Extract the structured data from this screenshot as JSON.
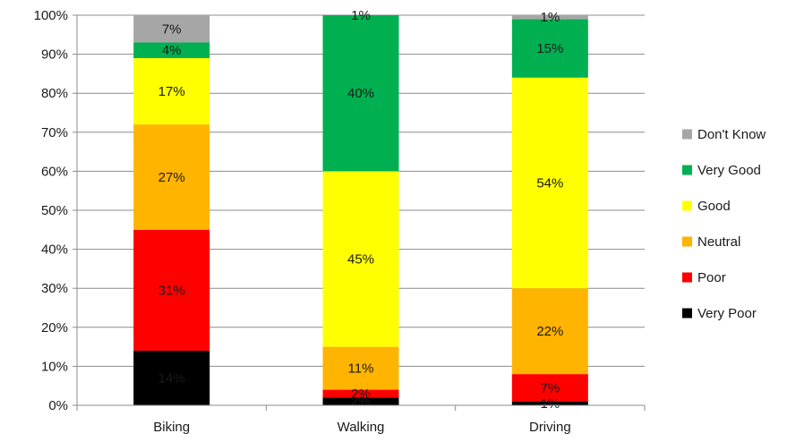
{
  "chart_data": {
    "type": "bar",
    "stacked": true,
    "percent_stacked": true,
    "categories": [
      "Biking",
      "Walking",
      "Driving"
    ],
    "series": [
      {
        "name": "Very Poor",
        "color": "#000000",
        "values": [
          14,
          2,
          1
        ],
        "labels": [
          "14%",
          "2%",
          "1%"
        ]
      },
      {
        "name": "Poor",
        "color": "#ff0000",
        "values": [
          31,
          2,
          7
        ],
        "labels": [
          "31%",
          "2%",
          "7%"
        ]
      },
      {
        "name": "Neutral",
        "color": "#ffb400",
        "values": [
          27,
          11,
          22
        ],
        "labels": [
          "27%",
          "11%",
          "22%"
        ]
      },
      {
        "name": "Good",
        "color": "#ffff00",
        "values": [
          17,
          45,
          54
        ],
        "labels": [
          "17%",
          "45%",
          "54%"
        ]
      },
      {
        "name": "Very Good",
        "color": "#00b050",
        "values": [
          4,
          40,
          15
        ],
        "labels": [
          "4%",
          "40%",
          "15%"
        ]
      },
      {
        "name": "Don't Know",
        "color": "#a6a6a6",
        "values": [
          7,
          1,
          1
        ],
        "labels": [
          "7%",
          "1%",
          "1%"
        ]
      }
    ],
    "ylim": [
      0,
      100
    ],
    "yticks": [
      0,
      10,
      20,
      30,
      40,
      50,
      60,
      70,
      80,
      90,
      100
    ],
    "ytick_labels": [
      "0%",
      "10%",
      "20%",
      "30%",
      "40%",
      "50%",
      "60%",
      "70%",
      "80%",
      "90%",
      "100%"
    ],
    "grid": true,
    "legend_position": "right",
    "legend_order": [
      "Don't Know",
      "Very Good",
      "Good",
      "Neutral",
      "Poor",
      "Very Poor"
    ]
  }
}
